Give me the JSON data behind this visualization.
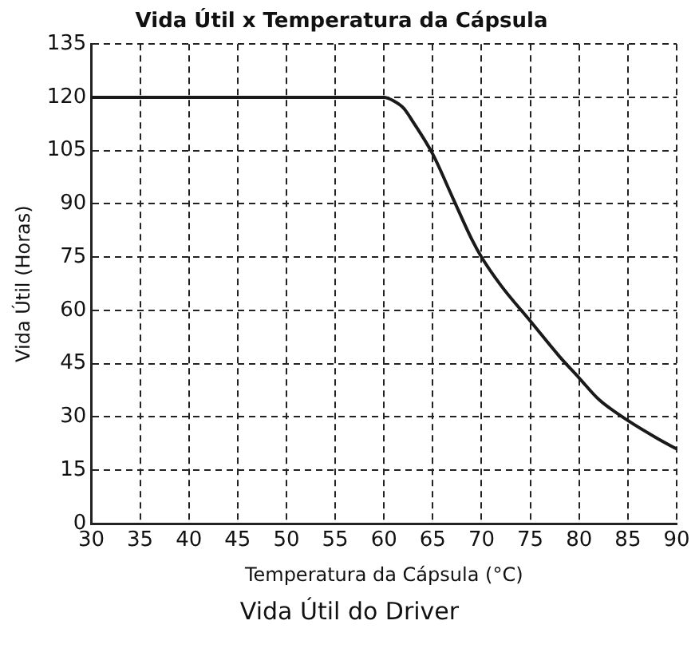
{
  "chart_data": {
    "type": "line",
    "title": "Vida Útil x Temperatura da Cápsula",
    "xlabel": "Temperatura da Cápsula (°C)",
    "ylabel": "Vida Útil (Horas)",
    "annotations": [
      "Vida Útil do Driver"
    ],
    "x": [
      30,
      60,
      61,
      62,
      63,
      65,
      67,
      69,
      70,
      72,
      75,
      78,
      80,
      82,
      85,
      88,
      90
    ],
    "series": [
      {
        "color": "#1a1a1a",
        "values": [
          120,
          120,
          119,
          117,
          113,
          104,
          92,
          80,
          75,
          67,
          57,
          47,
          41,
          35,
          29,
          24,
          21
        ]
      }
    ],
    "xlim": [
      30,
      90
    ],
    "xticks": [
      30,
      35,
      40,
      45,
      50,
      55,
      60,
      65,
      70,
      75,
      80,
      85,
      90
    ],
    "ylim": [
      0,
      135
    ],
    "yticks": [
      0,
      15,
      30,
      45,
      60,
      75,
      90,
      105,
      120,
      135
    ],
    "grid": true,
    "legend": false,
    "marker": "none",
    "line_style": "solid"
  }
}
